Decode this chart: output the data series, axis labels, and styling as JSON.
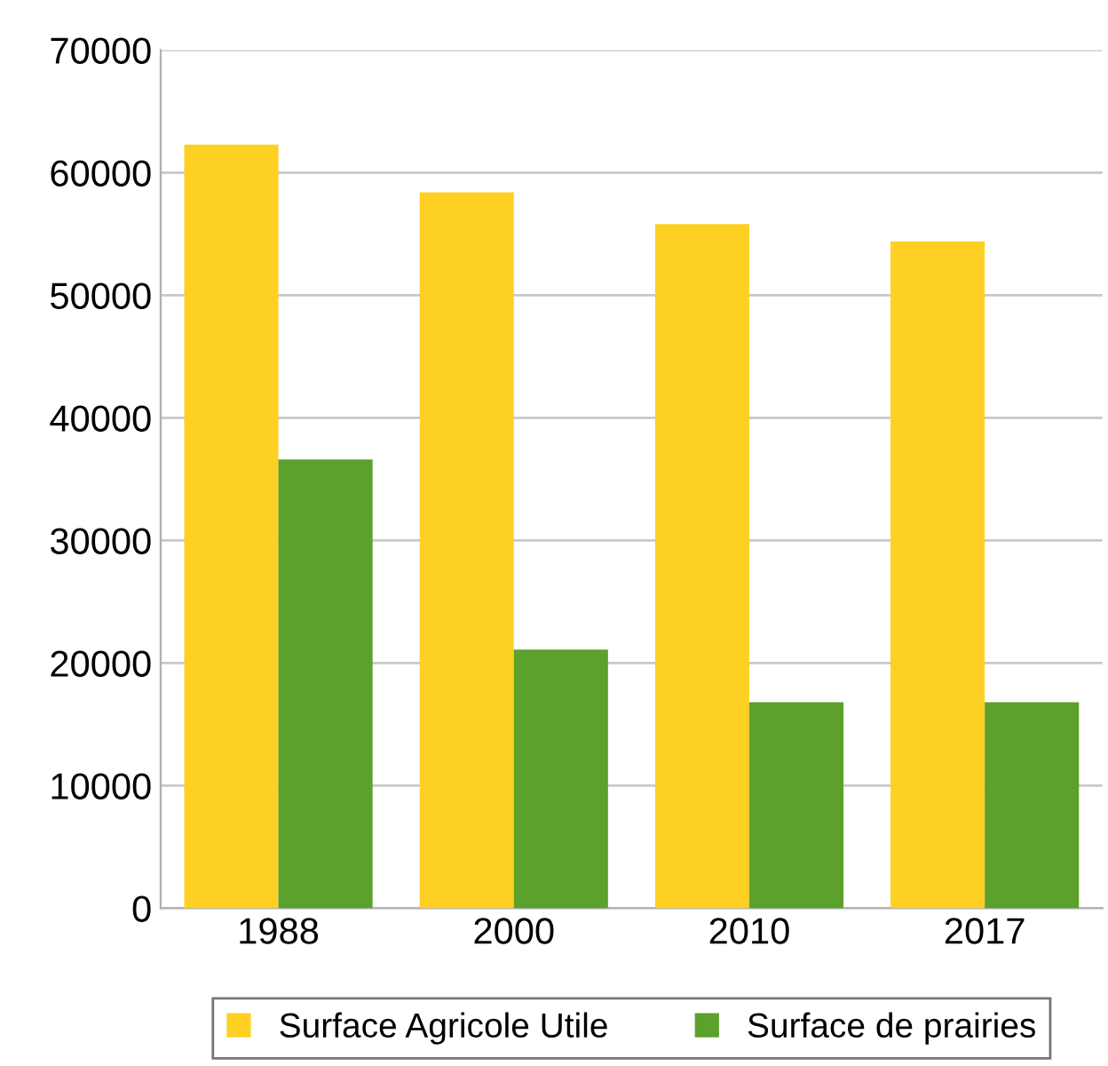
{
  "chart_data": {
    "type": "bar",
    "categories": [
      "1988",
      "2000",
      "2010",
      "2017"
    ],
    "series": [
      {
        "name": "Surface Agricole Utile",
        "color": "#fdd023",
        "values": [
          62300,
          58400,
          55800,
          54400
        ]
      },
      {
        "name": "Surface de prairies",
        "color": "#5ba12b",
        "values": [
          36600,
          21100,
          16800,
          16800
        ]
      }
    ],
    "ylim": [
      0,
      70000
    ],
    "yticks": [
      0,
      10000,
      20000,
      30000,
      40000,
      50000,
      60000,
      70000
    ],
    "grid": "y",
    "legend": "bottom"
  }
}
